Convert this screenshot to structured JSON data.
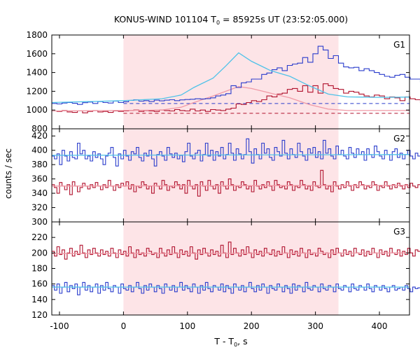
{
  "chart_data": {
    "type": "line",
    "title_main": "KONUS-WIND 101104 T",
    "title_sub": "0",
    "title_rest": " = 85925s UT (23:52:05.000)",
    "xlabel_main": "T - T",
    "xlabel_sub": "0",
    "xlabel_rest": ", s",
    "ylabel": "counts / sec",
    "xlim": [
      -112,
      447
    ],
    "x_ticks": [
      -100,
      0,
      100,
      200,
      300,
      400
    ],
    "highlight_interval": [
      0,
      336
    ],
    "colors": {
      "blue": "#2a3ccc",
      "cyan": "#4fc2e8",
      "red": "#b0102c",
      "pink": "#f09aa6",
      "shade": "#fde4e7"
    },
    "panels": [
      {
        "label": "G1",
        "ylim": [
          800,
          1800
        ],
        "y_ticks": [
          800,
          1000,
          1200,
          1400,
          1600,
          1800
        ],
        "bin_start": -112,
        "bin_width": 8,
        "blue": [
          1070,
          1065,
          1075,
          1080,
          1072,
          1060,
          1078,
          1085,
          1070,
          1090,
          1080,
          1075,
          1095,
          1080,
          1088,
          1102,
          1110,
          1095,
          1100,
          1090,
          1105,
          1098,
          1105,
          1110,
          1100,
          1108,
          1112,
          1115,
          1120,
          1118,
          1122,
          1130,
          1150,
          1160,
          1175,
          1260,
          1240,
          1290,
          1300,
          1330,
          1330,
          1380,
          1395,
          1430,
          1450,
          1420,
          1475,
          1490,
          1500,
          1560,
          1510,
          1600,
          1680,
          1640,
          1550,
          1580,
          1500,
          1460,
          1450,
          1455,
          1420,
          1440,
          1420,
          1400,
          1380,
          1360,
          1350,
          1370,
          1380,
          1350,
          1330,
          1330,
          1300,
          1280,
          1300,
          1260,
          1270,
          1250,
          1220,
          1210,
          1215,
          1200,
          1180,
          1170,
          1170,
          1165,
          1160,
          1150,
          1140,
          1155,
          1140,
          1130,
          1150,
          1140,
          1140,
          1130,
          1145,
          1135,
          1140,
          1150,
          1130,
          1140,
          1145,
          1150,
          1140,
          1130,
          1135,
          1150,
          1140,
          1130,
          1150,
          1140,
          1135,
          1130,
          1140,
          1150,
          1140,
          1130,
          1140,
          1150,
          1140,
          1135,
          1140,
          1150,
          1140,
          1140,
          1135,
          1130,
          1140,
          1150
        ],
        "blue_base": 1070,
        "cyan": [
          [
            -112,
            1080
          ],
          [
            0,
            1100
          ],
          [
            60,
            1120
          ],
          [
            90,
            1160
          ],
          [
            110,
            1240
          ],
          [
            140,
            1340
          ],
          [
            160,
            1470
          ],
          [
            180,
            1610
          ],
          [
            200,
            1520
          ],
          [
            230,
            1420
          ],
          [
            260,
            1360
          ],
          [
            290,
            1260
          ],
          [
            320,
            1170
          ],
          [
            350,
            1140
          ],
          [
            400,
            1135
          ],
          [
            447,
            1138
          ]
        ],
        "red": [
          990,
          985,
          995,
          980,
          975,
          990,
          970,
          985,
          995,
          980,
          985,
          975,
          990,
          985,
          990,
          995,
          1000,
          985,
          995,
          990,
          985,
          1000,
          995,
          990,
          1005,
          995,
          990,
          1010,
          990,
          1000,
          985,
          1005,
          1000,
          995,
          1010,
          1020,
          1065,
          1060,
          1080,
          1100,
          1090,
          1110,
          1150,
          1140,
          1170,
          1180,
          1220,
          1230,
          1200,
          1260,
          1190,
          1260,
          1180,
          1280,
          1260,
          1230,
          1220,
          1180,
          1200,
          1190,
          1170,
          1150,
          1140,
          1160,
          1150,
          1120,
          1140,
          1130,
          1100,
          1140,
          1120,
          1110,
          1080,
          1060,
          1090,
          1030,
          1045,
          1020,
          1040,
          1010,
          1020,
          1000,
          1010,
          995,
          1005,
          990,
          1000,
          990,
          1005,
          995,
          985,
          990,
          1000,
          995,
          985,
          990,
          1000,
          995,
          985,
          990,
          995,
          1000,
          985,
          990,
          995,
          1000,
          990,
          985,
          995,
          990,
          1000,
          985,
          995,
          990,
          985,
          1000,
          990,
          995,
          985,
          990,
          1000,
          995,
          990,
          985,
          990,
          995,
          1000,
          990,
          985,
          995
        ],
        "red_base": 965,
        "pink": [
          [
            -112,
            990
          ],
          [
            0,
            995
          ],
          [
            60,
            1000
          ],
          [
            90,
            1030
          ],
          [
            110,
            1080
          ],
          [
            140,
            1150
          ],
          [
            160,
            1200
          ],
          [
            180,
            1250
          ],
          [
            200,
            1230
          ],
          [
            230,
            1180
          ],
          [
            260,
            1130
          ],
          [
            290,
            1060
          ],
          [
            320,
            1010
          ],
          [
            350,
            995
          ],
          [
            447,
            995
          ]
        ]
      },
      {
        "label": "G2",
        "ylim": [
          300,
          430
        ],
        "y_ticks": [
          300,
          320,
          340,
          360,
          380,
          400,
          420
        ],
        "bin_start": -112,
        "bin_width": 4,
        "blue": [
          392,
          388,
          395,
          380,
          400,
          392,
          385,
          398,
          390,
          388,
          410,
          395,
          400,
          388,
          392,
          385,
          398,
          390,
          395,
          388,
          380,
          392,
          396,
          404,
          390,
          378,
          395,
          388,
          400,
          392,
          386,
          398,
          395,
          404,
          390,
          385,
          396,
          392,
          400,
          388,
          378,
          394,
          398,
          392,
          386,
          404,
          395,
          390,
          396,
          388,
          393,
          384,
          398,
          410,
          392,
          388,
          396,
          400,
          385,
          394,
          410,
          392,
          400,
          386,
          398,
          392,
          404,
          388,
          394,
          410,
          396,
          386,
          402,
          395,
          388,
          394,
          416,
          398,
          382,
          402,
          394,
          388,
          410,
          396,
          402,
          390,
          386,
          404,
          398,
          392,
          414,
          396,
          388,
          402,
          394,
          390,
          410,
          398,
          392,
          386,
          402,
          396,
          404,
          390,
          398,
          388,
          414,
          396,
          402,
          392,
          388,
          406,
          394,
          400,
          392,
          388,
          404,
          396,
          390,
          402,
          394,
          398,
          386,
          402,
          394,
          390,
          406,
          398,
          392,
          388,
          400,
          394,
          386,
          398,
          402,
          390,
          396,
          388,
          394,
          400,
          392,
          388,
          396,
          392
        ],
        "blue_base": 392,
        "cyan": [
          [
            -112,
            393
          ],
          [
            447,
            394
          ]
        ],
        "red": [
          352,
          348,
          340,
          355,
          350,
          345,
          352,
          338,
          356,
          350,
          342,
          348,
          354,
          350,
          346,
          352,
          348,
          355,
          350,
          345,
          352,
          348,
          358,
          350,
          344,
          352,
          348,
          354,
          350,
          356,
          346,
          352,
          342,
          350,
          348,
          356,
          352,
          346,
          350,
          340,
          354,
          350,
          346,
          358,
          352,
          344,
          350,
          348,
          356,
          352,
          346,
          352,
          340,
          358,
          350,
          346,
          352,
          336,
          356,
          350,
          344,
          358,
          350,
          346,
          352,
          340,
          356,
          350,
          346,
          360,
          352,
          344,
          350,
          348,
          356,
          352,
          346,
          350,
          342,
          358,
          350,
          346,
          352,
          348,
          356,
          350,
          344,
          358,
          352,
          348,
          350,
          346,
          356,
          352,
          344,
          350,
          348,
          358,
          352,
          346,
          350,
          344,
          356,
          350,
          348,
          372,
          352,
          346,
          350,
          342,
          356,
          350,
          346,
          352,
          348,
          356,
          350,
          344,
          352,
          348,
          356,
          352,
          346,
          350,
          348,
          356,
          352,
          344,
          350,
          348,
          356,
          350,
          346,
          352,
          348,
          354,
          350,
          346,
          352,
          348,
          354,
          350,
          348,
          352
        ],
        "red_base": 350,
        "pink": [
          [
            -112,
            350
          ],
          [
            447,
            351
          ]
        ]
      },
      {
        "label": "G3",
        "ylim": [
          120,
          240
        ],
        "y_ticks": [
          120,
          140,
          160,
          180,
          200,
          220
        ],
        "bin_start": -112,
        "bin_width": 4,
        "blue": [
          158,
          152,
          160,
          148,
          156,
          162,
          150,
          158,
          154,
          160,
          146,
          156,
          162,
          152,
          158,
          150,
          156,
          160,
          148,
          158,
          152,
          162,
          154,
          150,
          158,
          156,
          148,
          160,
          154,
          152,
          158,
          150,
          156,
          162,
          154,
          148,
          158,
          152,
          160,
          156,
          150,
          158,
          154,
          148,
          160,
          156,
          152,
          158,
          150,
          156,
          162,
          152,
          158,
          154,
          150,
          160,
          156,
          148,
          158,
          152,
          162,
          154,
          150,
          158,
          156,
          152,
          160,
          150,
          158,
          154,
          148,
          160,
          156,
          152,
          158,
          150,
          156,
          162,
          154,
          150,
          158,
          152,
          160,
          156,
          148,
          158,
          154,
          152,
          160,
          156,
          150,
          158,
          154,
          148,
          160,
          152,
          158,
          156,
          150,
          162,
          154,
          152,
          158,
          156,
          150,
          160,
          154,
          152,
          158,
          156,
          150,
          160,
          154,
          152,
          158,
          156,
          150,
          160,
          154,
          152,
          158,
          156,
          152,
          160,
          154,
          150,
          158,
          156,
          152,
          158,
          154,
          150,
          156,
          158,
          152,
          154,
          156,
          152,
          158,
          154,
          150,
          156,
          154,
          155
        ],
        "blue_base": 155,
        "cyan": [
          [
            -112,
            156
          ],
          [
            447,
            156
          ]
        ],
        "red": [
          202,
          196,
          208,
          198,
          204,
          192,
          200,
          206,
          196,
          202,
          198,
          210,
          200,
          194,
          204,
          198,
          206,
          200,
          196,
          204,
          198,
          202,
          196,
          206,
          200,
          194,
          204,
          198,
          202,
          196,
          208,
          200,
          194,
          204,
          198,
          200,
          196,
          206,
          202,
          198,
          200,
          194,
          206,
          200,
          196,
          204,
          198,
          208,
          200,
          194,
          204,
          198,
          202,
          196,
          208,
          200,
          192,
          204,
          198,
          206,
          200,
          196,
          204,
          198,
          202,
          196,
          210,
          200,
          194,
          214,
          198,
          206,
          200,
          196,
          204,
          198,
          208,
          200,
          194,
          204,
          198,
          202,
          196,
          206,
          200,
          198,
          204,
          196,
          202,
          198,
          208,
          200,
          194,
          204,
          198,
          202,
          196,
          206,
          200,
          194,
          204,
          198,
          200,
          196,
          206,
          202,
          198,
          200,
          194,
          204,
          198,
          206,
          200,
          196,
          204,
          198,
          202,
          196,
          206,
          200,
          198,
          204,
          196,
          202,
          198,
          206,
          200,
          194,
          204,
          198,
          202,
          196,
          206,
          200,
          198,
          204,
          196,
          202,
          198,
          206,
          200,
          196,
          204,
          202
        ],
        "red_base": 200,
        "pink": [
          [
            -112,
            199
          ],
          [
            447,
            200
          ]
        ]
      }
    ]
  }
}
